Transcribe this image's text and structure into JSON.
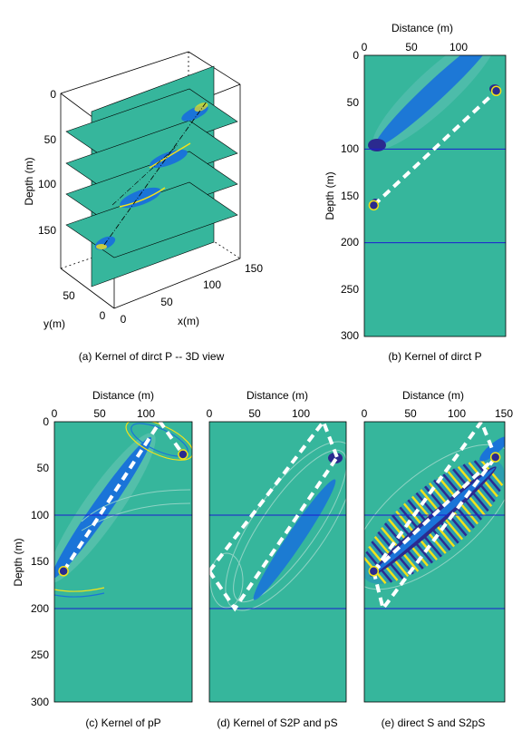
{
  "colors": {
    "background_field": "#36b69c",
    "kernel_blue": "#1a74d8",
    "kernel_dark": "#2b2a8f",
    "kernel_yellow": "#f2e21a",
    "raypath": "#ffffff",
    "interface": "#1c1cd0"
  },
  "panel_a": {
    "caption": "(a) Kernel of dirct P -- 3D view",
    "depth_label": "Depth (m)",
    "x_label": "x(m)",
    "y_label": "y(m)",
    "depth_ticks": [
      "0",
      "50",
      "100",
      "150"
    ],
    "x_ticks": [
      "0",
      "50",
      "100",
      "150"
    ],
    "y_ticks": [
      "50",
      "0"
    ]
  },
  "panel_b": {
    "caption": "(b) Kernel of dirct P",
    "x_label": "Distance (m)",
    "y_label": "Depth (m)",
    "x_ticks": [
      "0",
      "50",
      "100"
    ],
    "y_ticks": [
      "0",
      "50",
      "100",
      "150",
      "200",
      "250",
      "300"
    ]
  },
  "panel_c": {
    "caption": "(c) Kernel of pP",
    "x_label": "Distance (m)",
    "y_label": "Depth (m)",
    "x_ticks": [
      "0",
      "50",
      "100"
    ],
    "y_ticks": [
      "0",
      "50",
      "100",
      "150",
      "200",
      "250",
      "300"
    ]
  },
  "panel_d": {
    "caption": "(d) Kernel of S2P and pS",
    "x_label": "Distance (m)",
    "x_ticks": [
      "0",
      "50",
      "100"
    ]
  },
  "panel_e": {
    "caption": "(e)  direct S and S2pS",
    "x_label": "Distance (m)",
    "x_ticks": [
      "0",
      "50",
      "100",
      "150"
    ]
  },
  "chart_data": [
    {
      "type": "heatmap",
      "panel": "b",
      "xlim": [
        0,
        150
      ],
      "ylim": [
        300,
        0
      ],
      "interfaces_depth": [
        100,
        200
      ],
      "source": {
        "x": 10,
        "depth": 160
      },
      "receiver": {
        "x": 140,
        "depth": 38
      },
      "raypaths": [
        [
          [
            10,
            160
          ],
          [
            140,
            38
          ]
        ]
      ]
    },
    {
      "type": "heatmap",
      "panel": "c",
      "xlim": [
        0,
        150
      ],
      "ylim": [
        300,
        0
      ],
      "interfaces_depth": [
        100,
        200
      ],
      "source": {
        "x": 10,
        "depth": 160
      },
      "receiver": {
        "x": 140,
        "depth": 35
      },
      "raypaths": [
        [
          [
            10,
            160
          ],
          [
            115,
            0
          ],
          [
            140,
            35
          ]
        ]
      ]
    },
    {
      "type": "heatmap",
      "panel": "d",
      "xlim": [
        0,
        150
      ],
      "ylim": [
        300,
        0
      ],
      "interfaces_depth": [
        100,
        200
      ],
      "raypaths": [
        [
          [
            0,
            160
          ],
          [
            28,
            200
          ],
          [
            140,
            38
          ]
        ],
        [
          [
            0,
            160
          ],
          [
            125,
            0
          ],
          [
            140,
            38
          ]
        ]
      ]
    },
    {
      "type": "heatmap",
      "panel": "e",
      "xlim": [
        0,
        150
      ],
      "ylim": [
        300,
        0
      ],
      "interfaces_depth": [
        100,
        200
      ],
      "source": {
        "x": 10,
        "depth": 160
      },
      "receiver": {
        "x": 140,
        "depth": 38
      },
      "raypaths": [
        [
          [
            10,
            160
          ],
          [
            140,
            38
          ]
        ],
        [
          [
            10,
            160
          ],
          [
            125,
            0
          ],
          [
            140,
            38
          ]
        ],
        [
          [
            10,
            160
          ],
          [
            20,
            200
          ],
          [
            140,
            38
          ]
        ]
      ]
    }
  ]
}
